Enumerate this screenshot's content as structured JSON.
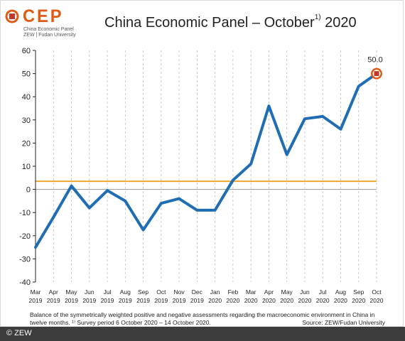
{
  "header": {
    "logo_text": "CEP",
    "logo_sub_1": "China Economic Panel",
    "logo_sub_2": "ZEW | Fudan University",
    "title": "China Economic Panel – October",
    "title_sup": "1)",
    "title_year": " 2020"
  },
  "chart_data": {
    "type": "line",
    "title": "China Economic Panel – October 1) 2020",
    "xlabel": "",
    "ylabel": "",
    "ylim": [
      -40,
      60
    ],
    "yticks": [
      60,
      50,
      40,
      30,
      20,
      10,
      0,
      -10,
      -20,
      -30,
      -40
    ],
    "reference_line": 3.5,
    "grid": "vertical dashed",
    "categories": [
      [
        "Mar",
        "2019"
      ],
      [
        "Apr",
        "2019"
      ],
      [
        "May",
        "2019"
      ],
      [
        "Jun",
        "2019"
      ],
      [
        "Jul",
        "2019"
      ],
      [
        "Aug",
        "2019"
      ],
      [
        "Sep",
        "2019"
      ],
      [
        "Oct",
        "2019"
      ],
      [
        "Nov",
        "2019"
      ],
      [
        "Dec",
        "2019"
      ],
      [
        "Jan",
        "2020"
      ],
      [
        "Feb",
        "2020"
      ],
      [
        "Mar",
        "2020"
      ],
      [
        "Apr",
        "2020"
      ],
      [
        "May",
        "2020"
      ],
      [
        "Jun",
        "2020"
      ],
      [
        "Jul",
        "2020"
      ],
      [
        "Aug",
        "2020"
      ],
      [
        "Sep",
        "2020"
      ],
      [
        "Oct",
        "2020"
      ]
    ],
    "series": [
      {
        "values": [
          -25,
          -12,
          1.5,
          -8,
          -0.5,
          -5,
          -17.5,
          -6,
          -4,
          -9,
          -9,
          4,
          11,
          36,
          15,
          30.5,
          31.5,
          26,
          44.5,
          50
        ]
      }
    ],
    "data_label": "50.0",
    "colors": {
      "line": "#1f6db3",
      "reference": "#f0a020",
      "zero": "#999999",
      "grid": "#bdbdbd",
      "marker": "#c0392b"
    }
  },
  "footer": {
    "note_1": "Balance of the symmetrically weighted positive and negative assessments regarding the macroeconomic environment in China in",
    "note_2": "twelve months. ¹⁾ Survey period 6 October 2020 – 14 October 2020.",
    "source": "Source: ZEW/Fudan University",
    "copyright": "© ZEW"
  }
}
